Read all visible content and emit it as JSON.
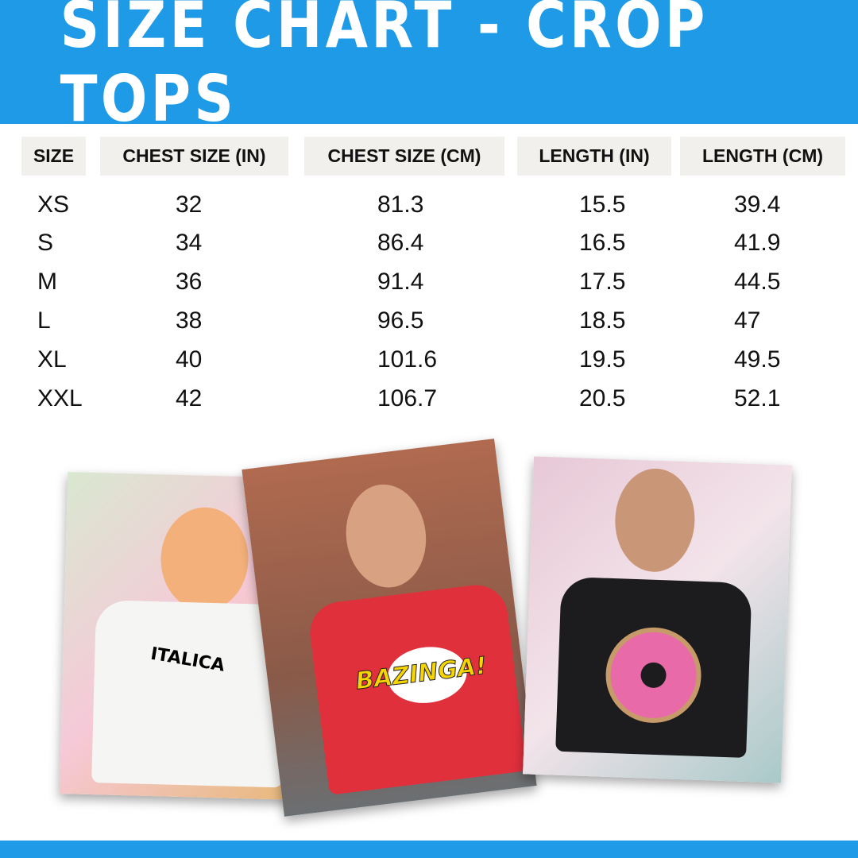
{
  "title": "SIZE CHART - CROP TOPS",
  "table": {
    "headers": [
      "SIZE",
      "CHEST SIZE (IN)",
      "CHEST SIZE (CM)",
      "LENGTH (IN)",
      "LENGTH (CM)"
    ],
    "rows": [
      [
        "XS",
        "32",
        "81.3",
        "15.5",
        "39.4"
      ],
      [
        "S",
        "34",
        "86.4",
        "16.5",
        "41.9"
      ],
      [
        "M",
        "36",
        "91.4",
        "17.5",
        "44.5"
      ],
      [
        "L",
        "38",
        "96.5",
        "18.5",
        "47"
      ],
      [
        "XL",
        "40",
        "101.6",
        "19.5",
        "49.5"
      ],
      [
        "XXL",
        "42",
        "106.7",
        "20.5",
        "52.1"
      ]
    ]
  },
  "photos": [
    {
      "shirt_text": "ITALICA",
      "shirt_color": "#f5f5f3"
    },
    {
      "shirt_text": "BAZINGA!",
      "shirt_color": "#e0303c"
    },
    {
      "shirt_text": "",
      "shirt_color": "#1c1c1e"
    }
  ],
  "colors": {
    "brand": "#1e9ae6",
    "header_cell": "#f1f0ec"
  }
}
